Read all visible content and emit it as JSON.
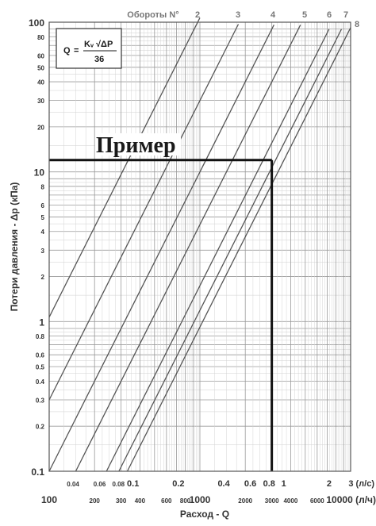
{
  "chart_data": {
    "type": "line",
    "title": "",
    "xlabel": "Расход - Q",
    "ylabel": "Потери давления - Δp (кПа)",
    "yscale": "log",
    "xscale": "log",
    "ylim": [
      0.1,
      100
    ],
    "xlim_m3h": [
      100,
      10000
    ],
    "xlim_ls": [
      0.0278,
      2.78
    ],
    "grid": true,
    "y_ticks": [
      "100",
      "80",
      "60",
      "50",
      "40",
      "30",
      "20",
      "10",
      "8",
      "6",
      "5",
      "4",
      "3",
      "2",
      "1",
      "0.8",
      "0.6",
      "0.5",
      "0.4",
      "0.3",
      "0.2",
      "0.1"
    ],
    "x_ticks_m3h": [
      "100",
      "200",
      "300",
      "400",
      "600",
      "800",
      "1000",
      "2000",
      "3000",
      "4000",
      "6000",
      "10000 (л/ч)"
    ],
    "x_ticks_ls": [
      "0.04",
      "0.06",
      "0.08",
      "0.1",
      "0.2",
      "0.4",
      "0.6",
      "0.8",
      "1",
      "2",
      "3 (л/с)"
    ],
    "curves_header": "Обороты N°",
    "series": [
      {
        "name": "2",
        "points": [
          [
            100,
            1.07
          ],
          [
            1000,
            107
          ]
        ]
      },
      {
        "name": "3",
        "points": [
          [
            100,
            0.3
          ],
          [
            1800,
            97
          ]
        ]
      },
      {
        "name": "4",
        "points": [
          [
            100,
            0.1
          ],
          [
            3100,
            96
          ]
        ]
      },
      {
        "name": "5",
        "points": [
          [
            150,
            0.1
          ],
          [
            4650,
            96
          ]
        ]
      },
      {
        "name": "6",
        "points": [
          [
            240,
            0.1
          ],
          [
            7200,
            90
          ]
        ]
      },
      {
        "name": "7",
        "points": [
          [
            290,
            0.1
          ],
          [
            8700,
            90
          ]
        ]
      },
      {
        "name": "8",
        "points": [
          [
            330,
            0.1
          ],
          [
            10000,
            92
          ]
        ]
      }
    ],
    "formula": {
      "lhs": "Q",
      "eq": "=",
      "numerator": "Kᵥ √ΔP",
      "denominator": "36"
    },
    "example": {
      "label": "Пример",
      "q": 3000,
      "dp": 12
    }
  }
}
